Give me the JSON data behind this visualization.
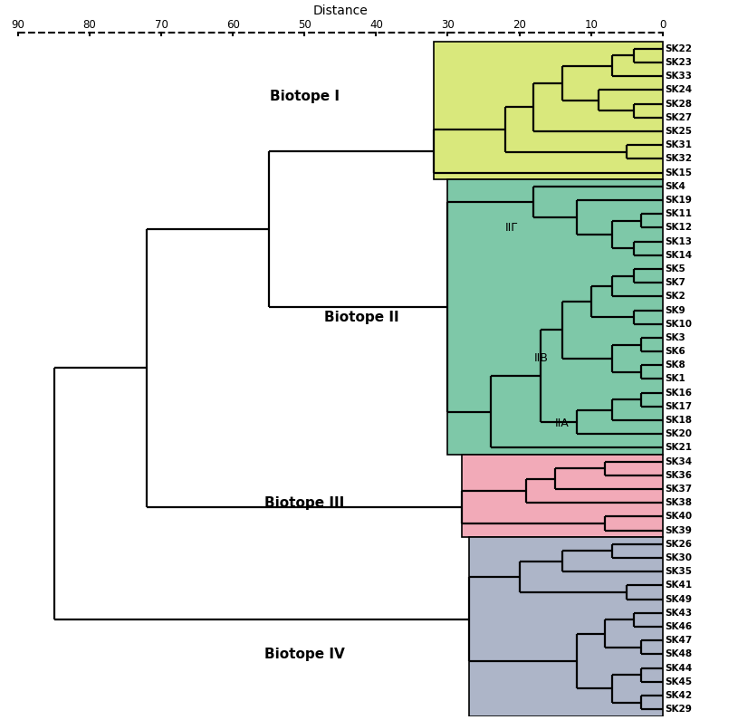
{
  "title": "Distance",
  "background_color": "#ffffff",
  "biotope_colors": {
    "I": "#d9e87c",
    "II": "#7ec8a8",
    "III": "#f2aab8",
    "IV": "#adb5c8"
  },
  "leaves": [
    "SK22",
    "SK23",
    "SK33",
    "SK24",
    "SK28",
    "SK27",
    "SK25",
    "SK31",
    "SK32",
    "SK15",
    "SK4",
    "SK19",
    "SK11",
    "SK12",
    "SK13",
    "SK14",
    "SK5",
    "SK7",
    "SK2",
    "SK9",
    "SK10",
    "SK3",
    "SK6",
    "SK8",
    "SK1",
    "SK16",
    "SK17",
    "SK18",
    "SK20",
    "SK21",
    "SK34",
    "SK36",
    "SK37",
    "SK38",
    "SK40",
    "SK39",
    "SK26",
    "SK30",
    "SK35",
    "SK41",
    "SK49",
    "SK43",
    "SK46",
    "SK47",
    "SK48",
    "SK44",
    "SK45",
    "SK42",
    "SK29"
  ],
  "axis_ticks": [
    90,
    80,
    70,
    60,
    50,
    40,
    30,
    20,
    10,
    0
  ],
  "lw": 1.6
}
